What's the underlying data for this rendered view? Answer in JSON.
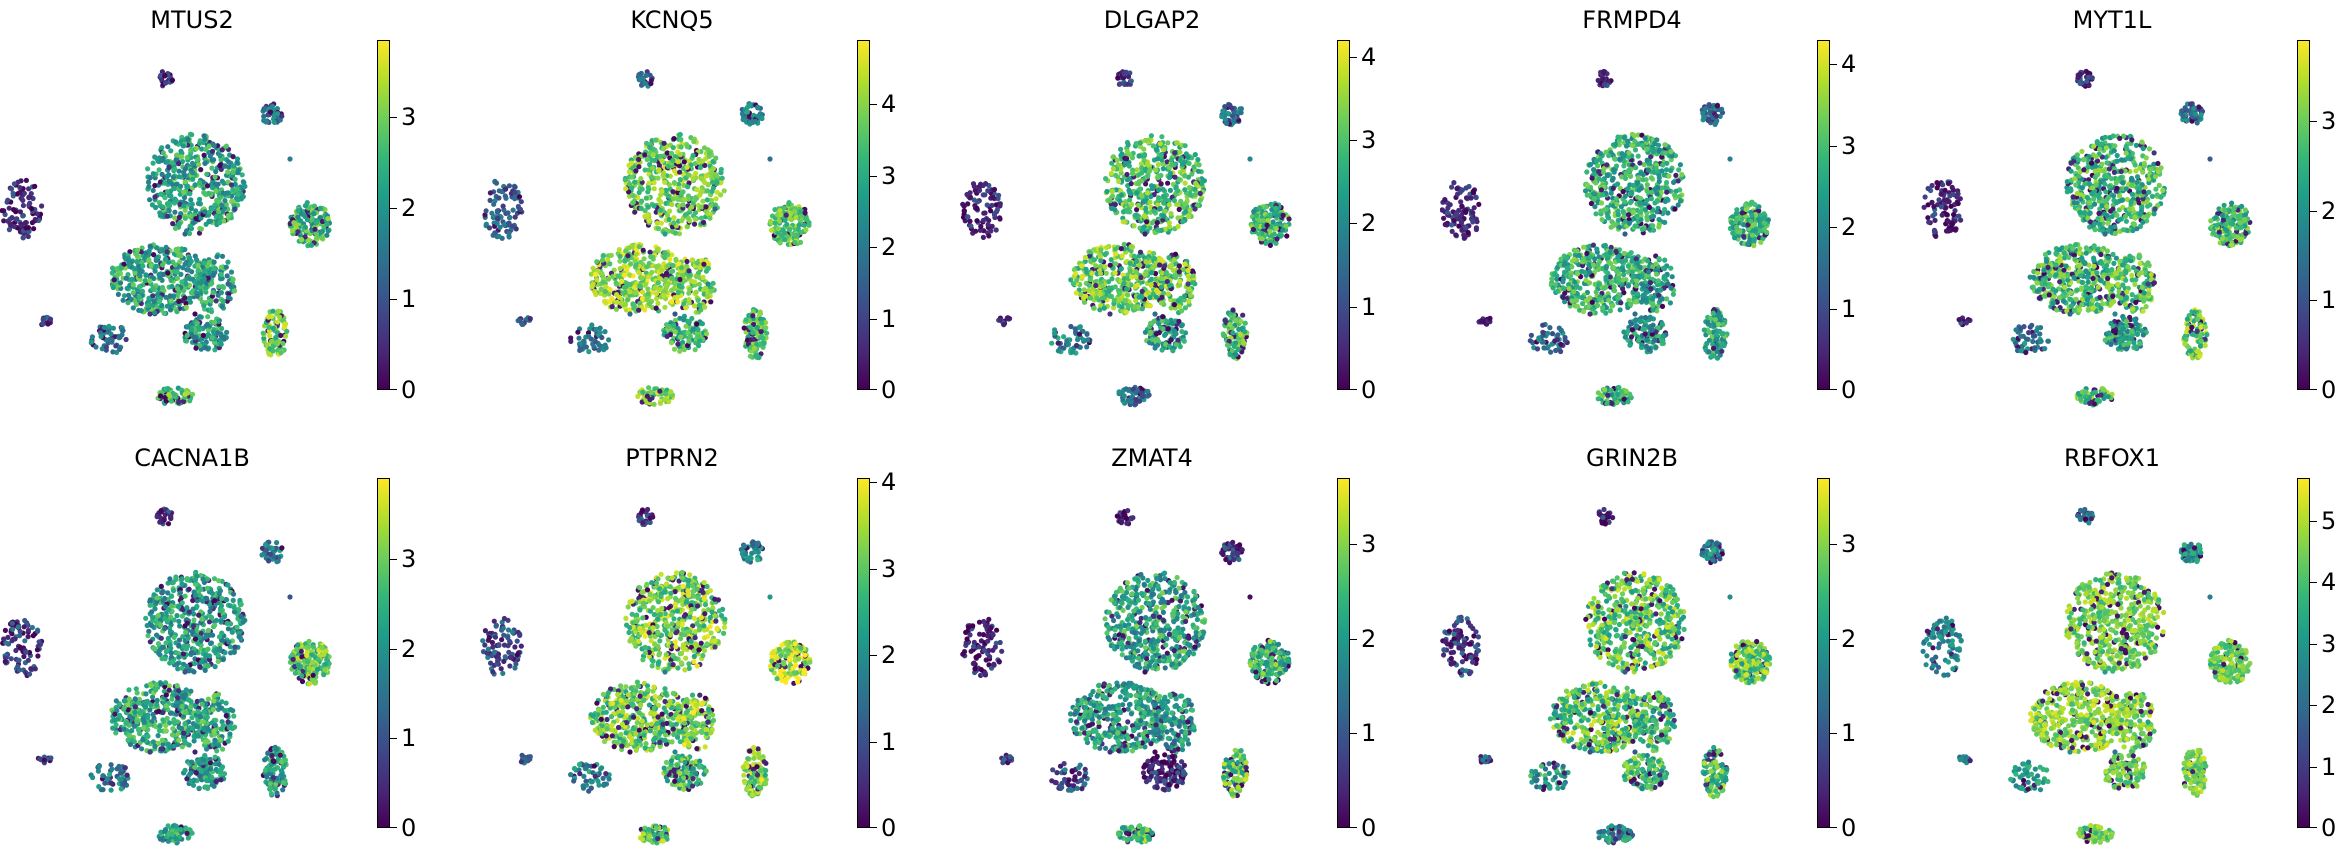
{
  "colormap": [
    "#440154",
    "#482878",
    "#3e4989",
    "#31688e",
    "#26828e",
    "#1f9e89",
    "#35b779",
    "#6ece58",
    "#b5de2b",
    "#fde725"
  ],
  "chart_data": [
    {
      "type": "scatter",
      "title": "MTUS2",
      "xlabel": "",
      "ylabel": "",
      "colorbar": {
        "range": [
          0,
          3.85
        ],
        "ticks": [
          0,
          1,
          2,
          3
        ]
      },
      "cluster_levels": {
        "A": 0.4,
        "B": 2.3,
        "C": 0.5,
        "D": 2.3,
        "E": 2.2,
        "F": 2.5,
        "G": 1.3,
        "H": 0.6,
        "I": 1.4,
        "J": 2.1,
        "K": 3.0,
        "L": 2.8,
        "M": 1.0
      }
    },
    {
      "type": "scatter",
      "title": "KCNQ5",
      "xlabel": "",
      "ylabel": "",
      "colorbar": {
        "range": [
          0,
          4.9
        ],
        "ticks": [
          0,
          1,
          2,
          3,
          4
        ]
      },
      "cluster_levels": {
        "A": 1.5,
        "B": 3.8,
        "C": 1.6,
        "D": 4.1,
        "E": 3.9,
        "F": 3.7,
        "G": 2.2,
        "H": 1.2,
        "I": 2.1,
        "J": 3.2,
        "K": 3.5,
        "L": 3.9,
        "M": 2.0
      }
    },
    {
      "type": "scatter",
      "title": "DLGAP2",
      "xlabel": "",
      "ylabel": "",
      "colorbar": {
        "range": [
          0,
          4.2
        ],
        "ticks": [
          0,
          1,
          2,
          3,
          4
        ]
      },
      "cluster_levels": {
        "A": 0.5,
        "B": 3.0,
        "C": 0.6,
        "D": 3.2,
        "E": 3.2,
        "F": 2.8,
        "G": 1.5,
        "H": 0.8,
        "I": 1.9,
        "J": 2.5,
        "K": 2.9,
        "L": 1.5,
        "M": 1.3
      }
    },
    {
      "type": "scatter",
      "title": "FRMPD4",
      "xlabel": "",
      "ylabel": "",
      "colorbar": {
        "range": [
          0,
          4.3
        ],
        "ticks": [
          0,
          1,
          2,
          3,
          4
        ]
      },
      "cluster_levels": {
        "A": 0.6,
        "B": 2.7,
        "C": 0.5,
        "D": 2.8,
        "E": 2.6,
        "F": 2.8,
        "G": 1.4,
        "H": 0.9,
        "I": 1.6,
        "J": 2.3,
        "K": 2.6,
        "L": 2.7,
        "M": 1.2
      }
    },
    {
      "type": "scatter",
      "title": "MYT1L",
      "xlabel": "",
      "ylabel": "",
      "colorbar": {
        "range": [
          0,
          3.9
        ],
        "ticks": [
          0,
          1,
          2,
          3
        ]
      },
      "cluster_levels": {
        "A": 0.6,
        "B": 2.6,
        "C": 0.5,
        "D": 2.7,
        "E": 2.8,
        "F": 2.6,
        "G": 1.3,
        "H": 0.9,
        "I": 1.5,
        "J": 2.2,
        "K": 2.9,
        "L": 2.8,
        "M": 1.3
      }
    },
    {
      "type": "scatter",
      "title": "CACNA1B",
      "xlabel": "",
      "ylabel": "",
      "colorbar": {
        "range": [
          0,
          3.9
        ],
        "ticks": [
          0,
          1,
          2,
          3
        ]
      },
      "cluster_levels": {
        "A": 0.8,
        "B": 2.2,
        "C": 0.6,
        "D": 2.4,
        "E": 2.4,
        "F": 2.9,
        "G": 1.5,
        "H": 0.8,
        "I": 1.6,
        "J": 2.1,
        "K": 2.3,
        "L": 2.3,
        "M": 1.3
      }
    },
    {
      "type": "scatter",
      "title": "PTPRN2",
      "xlabel": "",
      "ylabel": "",
      "colorbar": {
        "range": [
          0,
          4.05
        ],
        "ticks": [
          0,
          1,
          2,
          3,
          4
        ]
      },
      "cluster_levels": {
        "A": 1.0,
        "B": 3.2,
        "C": 0.7,
        "D": 3.1,
        "E": 3.3,
        "F": 3.6,
        "G": 1.9,
        "H": 1.0,
        "I": 1.8,
        "J": 2.8,
        "K": 3.2,
        "L": 3.0,
        "M": 1.4
      }
    },
    {
      "type": "scatter",
      "title": "ZMAT4",
      "xlabel": "",
      "ylabel": "",
      "colorbar": {
        "range": [
          0,
          3.7
        ],
        "ticks": [
          0,
          1,
          2,
          3
        ]
      },
      "cluster_levels": {
        "A": 0.3,
        "B": 2.2,
        "C": 0.3,
        "D": 2.1,
        "E": 1.9,
        "F": 2.4,
        "G": 0.8,
        "H": 0.7,
        "I": 1.0,
        "J": 0.4,
        "K": 2.7,
        "L": 2.6,
        "M": 0.8
      }
    },
    {
      "type": "scatter",
      "title": "GRIN2B",
      "xlabel": "",
      "ylabel": "",
      "colorbar": {
        "range": [
          0,
          3.7
        ],
        "ticks": [
          0,
          1,
          2,
          3
        ]
      },
      "cluster_levels": {
        "A": 0.7,
        "B": 2.7,
        "C": 0.5,
        "D": 2.7,
        "E": 2.6,
        "F": 2.7,
        "G": 1.6,
        "H": 1.0,
        "I": 2.0,
        "J": 2.5,
        "K": 2.6,
        "L": 1.8,
        "M": 1.5
      }
    },
    {
      "type": "scatter",
      "title": "RBFOX1",
      "xlabel": "",
      "ylabel": "",
      "colorbar": {
        "range": [
          0,
          5.7
        ],
        "ticks": [
          0,
          1,
          2,
          3,
          4,
          5
        ]
      },
      "cluster_levels": {
        "A": 2.6,
        "B": 4.5,
        "C": 2.4,
        "D": 4.7,
        "E": 4.6,
        "F": 4.4,
        "G": 3.0,
        "H": 2.2,
        "I": 3.1,
        "J": 4.3,
        "K": 4.6,
        "L": 4.3,
        "M": 2.9
      }
    }
  ]
}
